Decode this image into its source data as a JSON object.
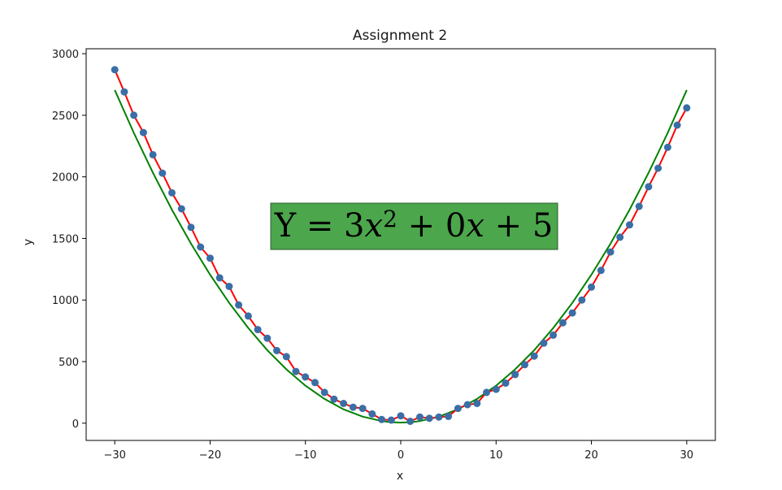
{
  "chart_data": {
    "type": "scatter",
    "title": "Assignment 2",
    "xlabel": "x",
    "ylabel": "y",
    "xlim": [
      -33,
      33
    ],
    "ylim": [
      -140,
      3040
    ],
    "xticks": [
      -30,
      -20,
      -10,
      0,
      10,
      20,
      30
    ],
    "xtick_labels": [
      "−30",
      "−20",
      "−10",
      "0",
      "10",
      "20",
      "30"
    ],
    "yticks": [
      0,
      500,
      1000,
      1500,
      2000,
      2500,
      3000
    ],
    "ytick_labels": [
      "0",
      "500",
      "1000",
      "1500",
      "2000",
      "2500",
      "3000"
    ],
    "grid": false,
    "annotation": {
      "parts": [
        {
          "text": "Y = 3",
          "italic": false,
          "sup": false
        },
        {
          "text": "x",
          "italic": true,
          "sup": false
        },
        {
          "text": "2",
          "italic": false,
          "sup": true
        },
        {
          "text": " + 0",
          "italic": false,
          "sup": false
        },
        {
          "text": "x",
          "italic": true,
          "sup": false
        },
        {
          "text": " + 5",
          "italic": false,
          "sup": false
        }
      ],
      "box_color": "#4ca64c"
    },
    "series": [
      {
        "kind": "scatter+line",
        "marker_color": "#3a6ea5",
        "line_color": "#ff0000",
        "x": [
          -30,
          -29,
          -28,
          -27,
          -26,
          -25,
          -24,
          -23,
          -22,
          -21,
          -20,
          -19,
          -18,
          -17,
          -16,
          -15,
          -14,
          -13,
          -12,
          -11,
          -10,
          -9,
          -8,
          -7,
          -6,
          -5,
          -4,
          -3,
          -2,
          -1,
          0,
          1,
          2,
          3,
          4,
          5,
          6,
          7,
          8,
          9,
          10,
          11,
          12,
          13,
          14,
          15,
          16,
          17,
          18,
          19,
          20,
          21,
          22,
          23,
          24,
          25,
          26,
          27,
          28,
          29,
          30
        ],
        "y": [
          2870,
          2690,
          2500,
          2360,
          2180,
          2030,
          1870,
          1740,
          1590,
          1430,
          1340,
          1180,
          1110,
          960,
          870,
          760,
          690,
          590,
          540,
          420,
          375,
          330,
          250,
          195,
          160,
          130,
          120,
          75,
          30,
          25,
          60,
          15,
          50,
          40,
          50,
          55,
          120,
          150,
          160,
          250,
          275,
          325,
          395,
          475,
          545,
          650,
          715,
          815,
          895,
          1000,
          1105,
          1240,
          1390,
          1510,
          1610,
          1760,
          1920,
          2070,
          2240,
          2420,
          2560
        ]
      },
      {
        "kind": "line",
        "line_color": "#008000",
        "x": [
          -30,
          -28,
          -26,
          -24,
          -22,
          -20,
          -18,
          -16,
          -14,
          -12,
          -10,
          -8,
          -6,
          -4,
          -2,
          -1,
          0,
          1,
          2,
          4,
          6,
          8,
          10,
          12,
          14,
          16,
          18,
          20,
          22,
          24,
          26,
          28,
          30
        ],
        "y": [
          2705,
          2357,
          2033,
          1733,
          1457,
          1205,
          977,
          773,
          593,
          437,
          305,
          197,
          113,
          53,
          17,
          8,
          5,
          8,
          17,
          53,
          113,
          197,
          305,
          437,
          593,
          773,
          977,
          1205,
          1457,
          1733,
          2033,
          2357,
          2705
        ]
      }
    ]
  }
}
